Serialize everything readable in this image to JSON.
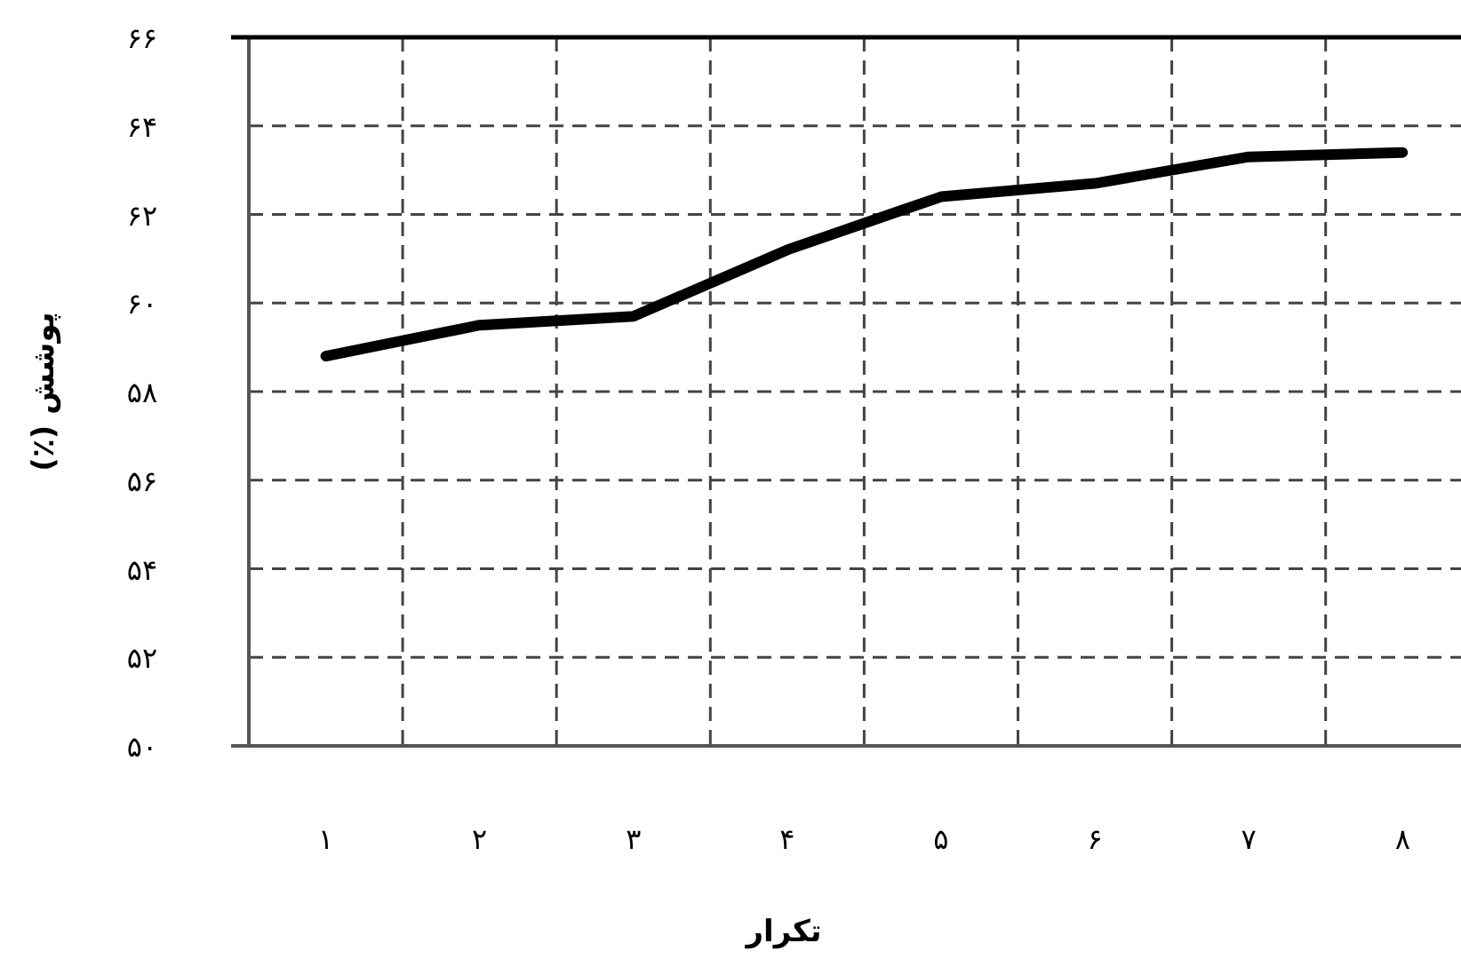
{
  "chart_data": {
    "type": "line",
    "xlabel": "تکرار",
    "ylabel": "پوشش (٪)",
    "categories": [
      "۱",
      "۲",
      "۳",
      "۴",
      "۵",
      "۶",
      "۷",
      "۸"
    ],
    "series": [
      {
        "color": "#000000",
        "values": [
          58.8,
          59.5,
          59.7,
          61.2,
          62.4,
          62.7,
          63.3,
          63.4
        ]
      }
    ],
    "ylim": [
      50,
      66
    ],
    "yticks": [
      {
        "value": 50,
        "label": "۵۰"
      },
      {
        "value": 52,
        "label": "۵۲"
      },
      {
        "value": 54,
        "label": "۵۴"
      },
      {
        "value": 56,
        "label": "۵۶"
      },
      {
        "value": 58,
        "label": "۵۸"
      },
      {
        "value": 60,
        "label": "۶۰"
      },
      {
        "value": 62,
        "label": "۶۲"
      },
      {
        "value": 64,
        "label": "۶۴"
      },
      {
        "value": 66,
        "label": "۶۶"
      }
    ],
    "grid": true,
    "line_style": "solid"
  }
}
